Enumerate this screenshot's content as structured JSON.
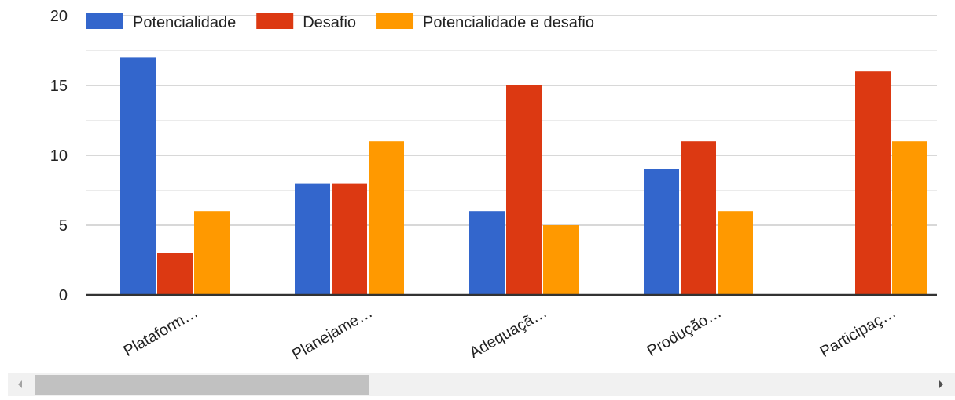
{
  "chart_data": {
    "type": "bar",
    "categories": [
      "Plataform…",
      "Planejame…",
      "Adequaçã…",
      "Produção…",
      "Participaç…"
    ],
    "series": [
      {
        "name": "Potencialidade",
        "color": "#3366cc",
        "values": [
          17,
          8,
          6,
          9,
          0
        ]
      },
      {
        "name": "Desafio",
        "color": "#dc3912",
        "values": [
          3,
          8,
          15,
          11,
          16
        ]
      },
      {
        "name": "Potencialidade e desafio",
        "color": "#ff9900",
        "values": [
          6,
          11,
          5,
          6,
          11
        ]
      }
    ],
    "yticks": [
      "0",
      "5",
      "10",
      "15",
      "20"
    ],
    "ylim": [
      0,
      20
    ],
    "grid": true,
    "legend_position": "top-left",
    "xlabel": "",
    "ylabel": "",
    "title": ""
  },
  "scrollbar": {
    "left_arrow_icon": "triangle-left",
    "right_arrow_icon": "triangle-right"
  }
}
